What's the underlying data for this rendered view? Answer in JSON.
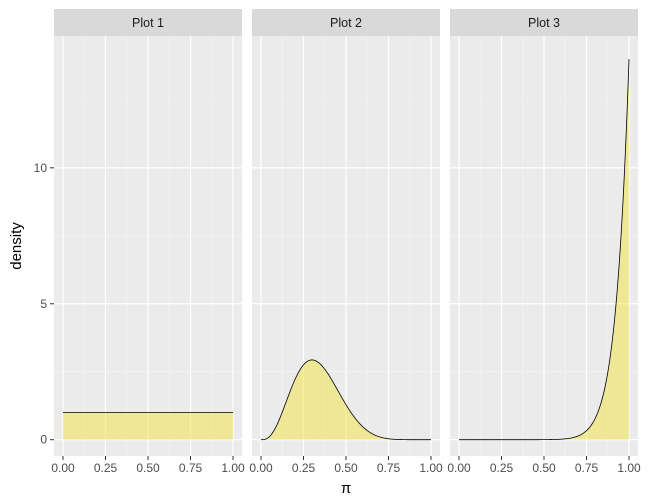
{
  "chart_data": {
    "type": "area",
    "facet_labels": [
      "Plot 1",
      "Plot 2",
      "Plot 3"
    ],
    "xlabel": "π",
    "ylabel": "density",
    "xlim": [
      0,
      1
    ],
    "ylim": [
      0,
      14
    ],
    "x_ticks": [
      "0.00",
      "0.25",
      "0.50",
      "0.75",
      "1.00"
    ],
    "y_ticks": [
      "0",
      "5",
      "10"
    ],
    "fill_color": "#f0e442",
    "grid": true,
    "panels": [
      {
        "label": "Plot 1",
        "distribution": "Beta(1, 1)",
        "alpha": 1,
        "beta": 1
      },
      {
        "label": "Plot 2",
        "distribution": "Beta(4, 8)",
        "alpha": 4,
        "beta": 8
      },
      {
        "label": "Plot 3",
        "distribution": "Beta(14, 1)",
        "alpha": 14,
        "beta": 1
      }
    ]
  }
}
